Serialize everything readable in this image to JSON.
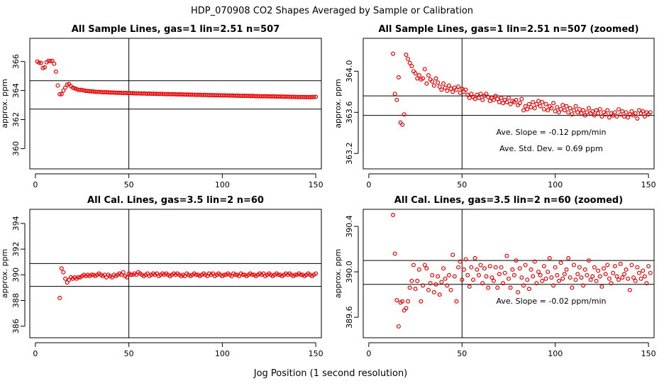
{
  "figure": {
    "title": "HDP_070908  CO2 Shapes Averaged by Sample or Calibration",
    "xlabel": "Jog Position (1 second resolution)",
    "colors": {
      "points": "#ee0000",
      "axes": "#000000"
    }
  },
  "chart_data": [
    {
      "type": "scatter",
      "title": "All Sample Lines, gas=1 lin=2.51 n=507",
      "ylabel": "approx. ppm",
      "xlim": [
        -3,
        153
      ],
      "ylim": [
        358.6,
        367.6
      ],
      "xticks": [
        0,
        50,
        100,
        150
      ],
      "xtick_labels": [
        "0",
        "50",
        "100",
        "150"
      ],
      "yticks": [
        360,
        362,
        364,
        366
      ],
      "ytick_labels": [
        "360",
        "362",
        "364",
        "366"
      ],
      "vline": 50,
      "hlines": [
        364.68,
        362.72
      ],
      "annotations": [],
      "x_start": 1,
      "y": [
        366.0,
        365.92,
        365.9,
        365.55,
        365.6,
        365.95,
        366.05,
        366.02,
        366.05,
        365.85,
        365.3,
        364.35,
        363.75,
        363.75,
        364.0,
        364.2,
        364.4,
        364.45,
        364.3,
        364.2,
        364.15,
        364.1,
        364.05,
        364.05,
        364.05,
        364.0,
        363.98,
        363.97,
        363.95,
        363.95,
        363.93,
        363.92,
        363.9,
        363.91,
        363.9,
        363.88,
        363.89,
        363.88,
        363.87,
        363.86,
        363.87,
        363.86,
        363.85,
        363.84,
        363.85,
        363.84,
        363.83,
        363.84,
        363.83,
        363.82,
        363.82,
        363.82,
        363.81,
        363.8,
        363.81,
        363.8,
        363.79,
        363.8,
        363.79,
        363.78,
        363.79,
        363.78,
        363.78,
        363.77,
        363.77,
        363.76,
        363.77,
        363.76,
        363.76,
        363.75,
        363.76,
        363.75,
        363.74,
        363.75,
        363.74,
        363.73,
        363.74,
        363.73,
        363.73,
        363.72,
        363.73,
        363.72,
        363.71,
        363.72,
        363.71,
        363.7,
        363.71,
        363.7,
        363.7,
        363.69,
        363.7,
        363.69,
        363.68,
        363.69,
        363.68,
        363.67,
        363.68,
        363.67,
        363.67,
        363.66,
        363.67,
        363.66,
        363.66,
        363.65,
        363.66,
        363.65,
        363.64,
        363.65,
        363.64,
        363.64,
        363.63,
        363.64,
        363.63,
        363.63,
        363.62,
        363.63,
        363.62,
        363.61,
        363.62,
        363.61,
        363.61,
        363.6,
        363.61,
        363.6,
        363.6,
        363.59,
        363.6,
        363.59,
        363.59,
        363.58,
        363.59,
        363.58,
        363.57,
        363.58,
        363.57,
        363.57,
        363.56,
        363.57,
        363.56,
        363.56,
        363.55,
        363.56,
        363.55,
        363.55,
        363.54,
        363.55,
        363.54,
        363.56,
        363.55,
        363.57
      ]
    },
    {
      "type": "scatter",
      "title": "All Sample Lines, gas=1 lin=2.51 n=507 (zoomed)",
      "ylabel": "approx. ppm",
      "xlim": [
        -3,
        153
      ],
      "ylim": [
        363.05,
        364.32
      ],
      "xticks": [
        0,
        50,
        100,
        150
      ],
      "xtick_labels": [
        "0",
        "50",
        "100",
        "150"
      ],
      "yticks": [
        363.2,
        363.6,
        364.0
      ],
      "ytick_labels": [
        "363.2",
        "363.6",
        "364.0"
      ],
      "vline": 50,
      "hlines": [
        363.76,
        363.57
      ],
      "annotations": [
        "Ave. Slope =  -0.12  ppm/min",
        "Ave. Std. Dev. =  0.69  ppm"
      ],
      "x_start": 13,
      "y": [
        364.17,
        363.78,
        363.72,
        363.94,
        363.5,
        363.48,
        363.58,
        364.16,
        364.12,
        364.08,
        364.05,
        364.0,
        363.98,
        363.93,
        363.96,
        363.92,
        363.93,
        364.02,
        363.88,
        363.96,
        363.92,
        363.9,
        363.86,
        363.93,
        363.89,
        363.85,
        363.82,
        363.88,
        363.84,
        363.81,
        363.86,
        363.83,
        363.8,
        363.84,
        363.82,
        363.85,
        363.79,
        363.83,
        363.8,
        363.82,
        363.77,
        363.74,
        363.78,
        363.75,
        363.73,
        363.77,
        363.74,
        363.78,
        363.72,
        363.76,
        363.78,
        363.75,
        363.71,
        363.74,
        363.72,
        363.76,
        363.73,
        363.7,
        363.74,
        363.69,
        363.72,
        363.7,
        363.74,
        363.68,
        363.71,
        363.7,
        363.72,
        363.67,
        363.69,
        363.73,
        363.62,
        363.66,
        363.63,
        363.68,
        363.65,
        363.7,
        363.64,
        363.68,
        363.71,
        363.66,
        363.7,
        363.63,
        363.68,
        363.62,
        363.66,
        363.64,
        363.69,
        363.61,
        363.65,
        363.6,
        363.63,
        363.67,
        363.62,
        363.66,
        363.6,
        363.64,
        363.58,
        363.62,
        363.66,
        363.6,
        363.63,
        363.59,
        363.62,
        363.57,
        363.6,
        363.64,
        363.59,
        363.61,
        363.57,
        363.62,
        363.59,
        363.63,
        363.56,
        363.6,
        363.58,
        363.62,
        363.55,
        363.59,
        363.57,
        363.6,
        363.56,
        363.63,
        363.58,
        363.61,
        363.56,
        363.6,
        363.55,
        363.58,
        363.61,
        363.57,
        363.59,
        363.54,
        363.62,
        363.59,
        363.61,
        363.56,
        363.6,
        363.58,
        363.6
      ]
    },
    {
      "type": "scatter",
      "title": "All Cal. Lines, gas=3.5 lin=2 n=60",
      "ylabel": "approx. ppm",
      "xlim": [
        -3,
        153
      ],
      "ylim": [
        385.1,
        395.1
      ],
      "xticks": [
        0,
        50,
        100,
        150
      ],
      "xtick_labels": [
        "0",
        "50",
        "100",
        "150"
      ],
      "yticks": [
        386,
        388,
        390,
        392,
        394
      ],
      "ytick_labels": [
        "386",
        "388",
        "390",
        "392",
        "394"
      ],
      "vline": 50,
      "hlines": [
        390.88,
        389.1
      ],
      "annotations": [],
      "x_start": 13,
      "y": [
        388.2,
        390.5,
        390.2,
        389.7,
        389.4,
        389.6,
        389.8,
        389.7,
        389.8,
        389.7,
        389.8,
        389.8,
        389.9,
        390.0,
        389.9,
        390.0,
        389.9,
        390.0,
        390.0,
        389.9,
        390.0,
        390.1,
        390.0,
        389.9,
        390.0,
        389.8,
        390.0,
        389.9,
        389.8,
        390.0,
        389.9,
        390.0,
        390.1,
        390.0,
        390.2,
        389.9,
        389.8,
        390.1,
        390.0,
        390.0,
        390.1,
        390.0,
        390.2,
        390.1,
        390.0,
        389.9,
        390.0,
        390.1,
        389.9,
        390.0,
        390.1,
        390.0,
        390.1,
        389.9,
        390.0,
        390.1,
        390.0,
        390.1,
        390.0,
        389.9,
        390.0,
        390.1,
        390.0,
        390.1,
        390.0,
        389.9,
        390.0,
        389.9,
        390.1,
        390.0,
        389.9,
        390.0,
        390.1,
        390.0,
        390.0,
        389.9,
        390.0,
        390.1,
        390.0,
        389.9,
        390.1,
        390.0,
        390.1,
        389.9,
        390.0,
        390.1,
        390.0,
        389.9,
        390.0,
        390.0,
        390.1,
        390.0,
        389.9,
        390.1,
        390.0,
        390.0,
        389.9,
        390.1,
        390.0,
        390.0,
        389.9,
        390.0,
        390.1,
        390.0,
        390.0,
        389.9,
        390.0,
        390.1,
        390.0,
        390.1,
        389.9,
        390.0,
        390.1,
        390.0,
        389.9,
        390.0,
        390.1,
        390.0,
        390.0,
        389.9,
        390.0,
        390.1,
        390.0,
        390.1,
        390.0,
        389.9,
        390.0,
        390.0,
        390.1,
        390.0,
        390.0,
        389.9,
        390.0,
        390.1,
        390.0,
        389.9,
        390.0,
        390.1
      ]
    },
    {
      "type": "scatter",
      "title": "All Cal. Lines, gas=3.5 lin=2 n=60 (zoomed)",
      "ylabel": "approx. ppm",
      "xlim": [
        -3,
        153
      ],
      "ylim": [
        389.42,
        390.55
      ],
      "xticks": [
        0,
        50,
        100,
        150
      ],
      "xtick_labels": [
        "0",
        "50",
        "100",
        "150"
      ],
      "yticks": [
        389.6,
        390.0,
        390.4
      ],
      "ytick_labels": [
        "389.6",
        "390.0",
        "390.4"
      ],
      "vline": 50,
      "hlines": [
        390.1,
        389.89
      ],
      "annotations": [
        "Ave. Slope =  -0.02  ppm/min"
      ],
      "x_start": 13,
      "y": [
        390.5,
        390.16,
        389.75,
        389.52,
        389.73,
        389.74,
        389.66,
        389.68,
        389.74,
        389.86,
        389.92,
        390.06,
        389.85,
        389.92,
        390.02,
        389.74,
        389.88,
        390.06,
        390.03,
        389.84,
        389.9,
        389.97,
        389.82,
        389.89,
        389.96,
        389.8,
        389.91,
        390.03,
        389.94,
        389.88,
        389.97,
        389.84,
        390.15,
        389.96,
        389.74,
        390.04,
        390.09,
        389.93,
        390.02,
        390.11,
        389.97,
        389.87,
        390.04,
        389.93,
        390.12,
        390.02,
        389.97,
        390.06,
        389.9,
        390.03,
        389.96,
        389.86,
        390.05,
        389.95,
        389.92,
        390.04,
        389.86,
        389.98,
        390.04,
        389.9,
        389.99,
        390.14,
        389.94,
        389.86,
        390.02,
        389.97,
        390.1,
        389.82,
        390.03,
        389.95,
        389.88,
        390.06,
        389.93,
        389.85,
        390.02,
        389.96,
        390.09,
        389.9,
        390.0,
        389.97,
        389.92,
        390.05,
        389.94,
        390.0,
        390.12,
        389.95,
        389.88,
        390.04,
        389.97,
        389.92,
        390.08,
        389.94,
        389.98,
        390.02,
        390.12,
        389.95,
        389.86,
        390.06,
        389.93,
        389.98,
        390.04,
        389.95,
        389.88,
        390.02,
        389.97,
        390.1,
        389.93,
        389.96,
        390.04,
        389.92,
        390.01,
        389.96,
        389.87,
        390.03,
        389.98,
        390.06,
        389.94,
        389.9,
        389.99,
        390.05,
        389.96,
        389.93,
        390.07,
        389.95,
        389.98,
        390.02,
        389.94,
        389.84,
        390.06,
        389.95,
        389.92,
        390.04,
        389.99,
        389.94,
        390.01,
        389.96,
        389.9,
        390.05,
        389.99
      ]
    }
  ]
}
